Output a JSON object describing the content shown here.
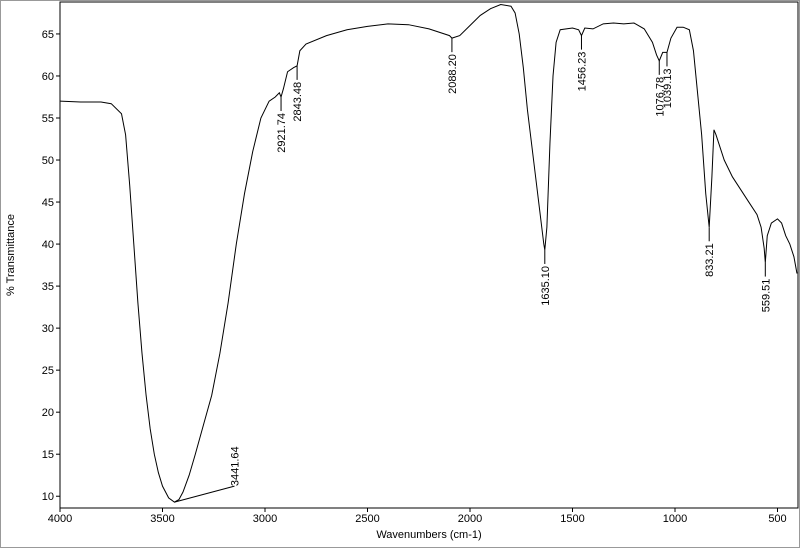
{
  "chart_data": {
    "type": "line",
    "x_label": "Wavenumbers (cm-1)",
    "y_label": "% Transmittance",
    "color": "#000000",
    "x": [
      4000,
      3900,
      3800,
      3750,
      3700,
      3680,
      3660,
      3640,
      3620,
      3600,
      3580,
      3560,
      3540,
      3520,
      3500,
      3470,
      3441.64,
      3420,
      3400,
      3370,
      3340,
      3300,
      3260,
      3220,
      3180,
      3140,
      3100,
      3060,
      3020,
      2980,
      2950,
      2930,
      2921.74,
      2910,
      2890,
      2860,
      2843.48,
      2830,
      2800,
      2700,
      2600,
      2500,
      2400,
      2300,
      2200,
      2100,
      2088.2,
      2050,
      2000,
      1950,
      1900,
      1850,
      1800,
      1780,
      1760,
      1740,
      1720,
      1700,
      1680,
      1660,
      1640,
      1635.1,
      1625,
      1610,
      1595,
      1580,
      1560,
      1500,
      1470,
      1456.23,
      1440,
      1400,
      1350,
      1300,
      1250,
      1200,
      1150,
      1110,
      1090,
      1076.78,
      1060,
      1039.13,
      1020,
      990,
      960,
      930,
      910,
      890,
      870,
      850,
      833.21,
      820,
      810,
      800,
      760,
      720,
      680,
      640,
      600,
      580,
      565,
      559.51,
      550,
      530,
      500,
      480,
      460,
      440,
      420,
      405
    ],
    "values": [
      57,
      56.9,
      56.9,
      56.7,
      55.5,
      53,
      47,
      40,
      33,
      27,
      22,
      18,
      15,
      12.8,
      11.2,
      9.8,
      9.3,
      9.6,
      10.5,
      12.5,
      15,
      18.5,
      22,
      27,
      33,
      40,
      46,
      51,
      55,
      57,
      57.5,
      58,
      57.5,
      58.5,
      60.5,
      61,
      61.2,
      63,
      63.8,
      64.8,
      65.5,
      65.9,
      66.2,
      66.1,
      65.6,
      64.8,
      64.5,
      64.8,
      66,
      67.2,
      68,
      68.5,
      68.3,
      67.5,
      65,
      61,
      56,
      52,
      48,
      44,
      40,
      39.3,
      42,
      52,
      60,
      64,
      65.5,
      65.7,
      65.5,
      64.8,
      65.7,
      65.6,
      66.2,
      66.3,
      66.2,
      66.3,
      65.6,
      64,
      62.5,
      61.8,
      62.8,
      62.8,
      64.5,
      65.8,
      65.8,
      65.5,
      63,
      58,
      53,
      46,
      42,
      48,
      53.6,
      53,
      50,
      48,
      46.5,
      45,
      43.5,
      42,
      39.5,
      37.8,
      41,
      42.5,
      43,
      42.5,
      41,
      40,
      38.5,
      36.5
    ],
    "xlim": [
      4000,
      400
    ],
    "ylim": [
      8.6,
      68.8
    ],
    "xticks": [
      4000,
      3500,
      3000,
      2500,
      2000,
      1500,
      1000,
      500
    ],
    "yticks": [
      10,
      15,
      20,
      25,
      30,
      35,
      40,
      45,
      50,
      55,
      60,
      65
    ],
    "annotations": [
      {
        "x": 3441.64,
        "y": 9.3,
        "label": "3441.64"
      },
      {
        "x": 2921.74,
        "y": 57.5,
        "label": "2921.74"
      },
      {
        "x": 2843.48,
        "y": 61.2,
        "label": "2843.48"
      },
      {
        "x": 2088.2,
        "y": 64.5,
        "label": "2088.20"
      },
      {
        "x": 1635.1,
        "y": 39.3,
        "label": "1635.10"
      },
      {
        "x": 1456.23,
        "y": 64.8,
        "label": "1456.23"
      },
      {
        "x": 1076.78,
        "y": 61.8,
        "label": "1076.78"
      },
      {
        "x": 1039.13,
        "y": 62.8,
        "label": "1039.13"
      },
      {
        "x": 833.21,
        "y": 42,
        "label": "833.21"
      },
      {
        "x": 559.51,
        "y": 37.8,
        "label": "559.51"
      }
    ]
  }
}
